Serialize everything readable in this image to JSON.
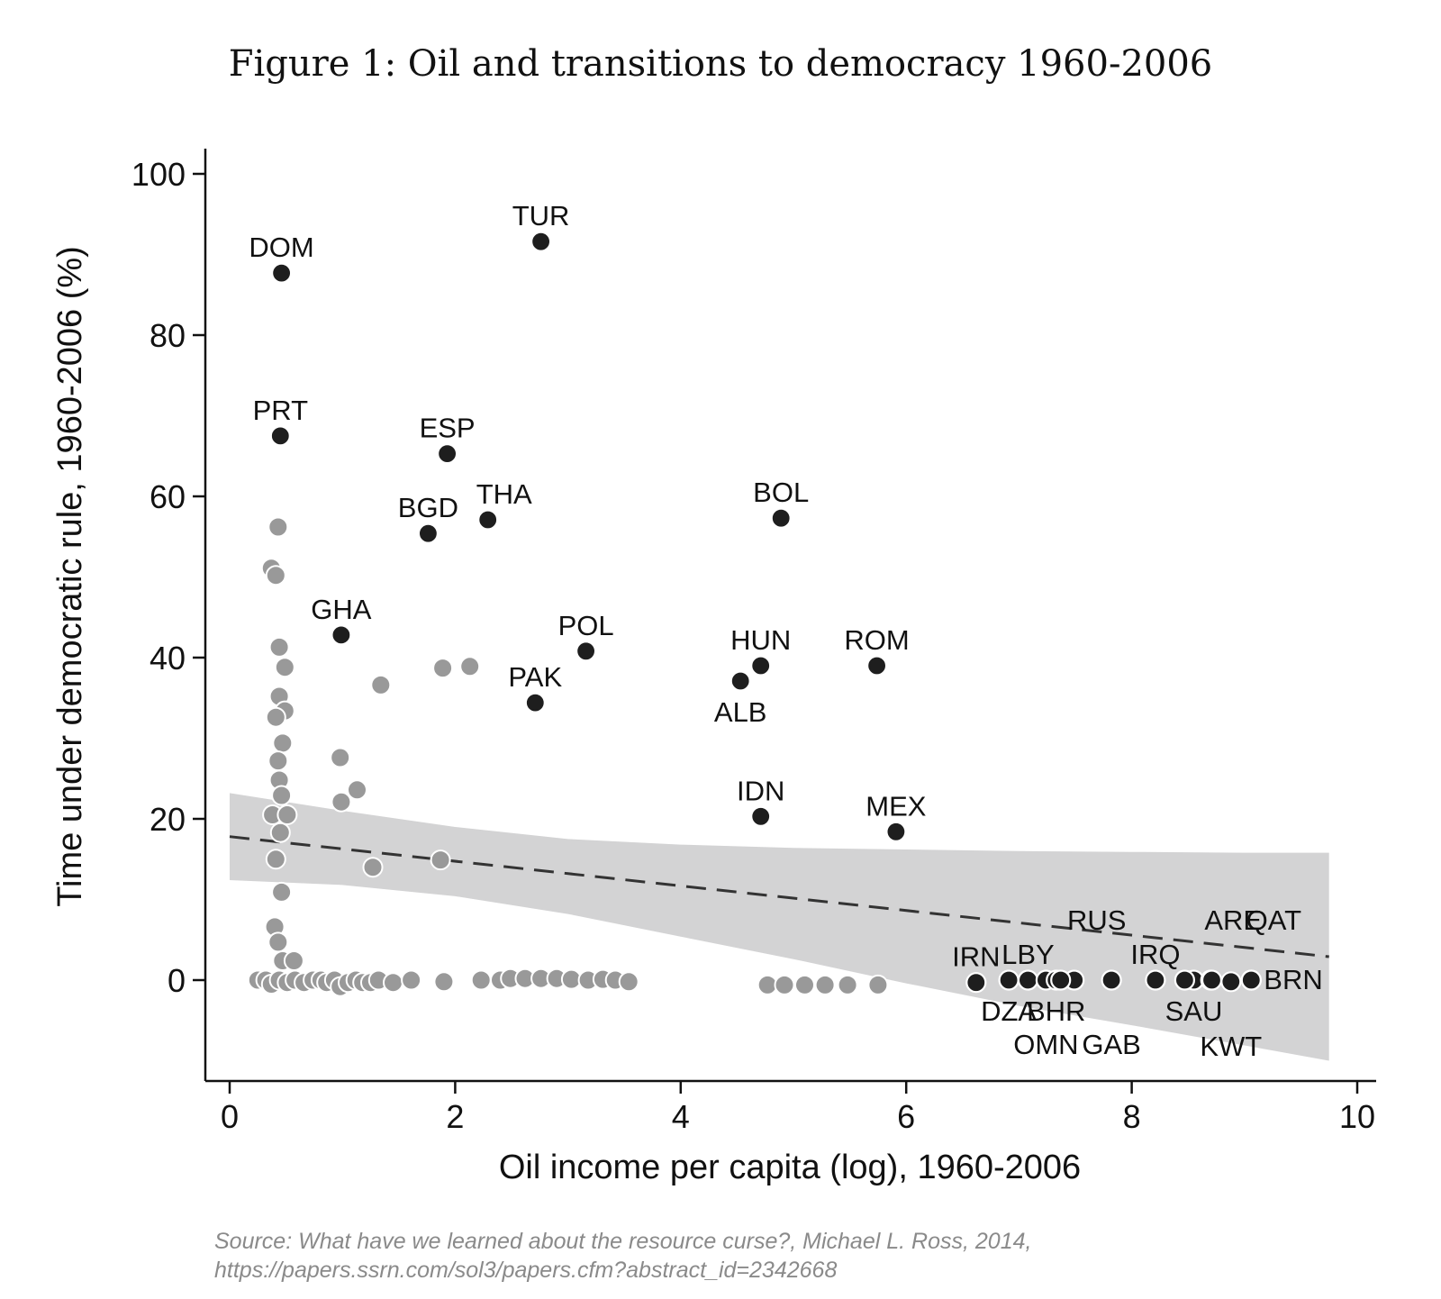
{
  "title": "Figure 1: Oil and transitions to democracy 1960-2006",
  "source_line1": "Source: What have we learned about the resource curse?, Michael L. Ross, 2014,",
  "source_line2": "https://papers.ssrn.com/sol3/papers.cfm?abstract_id=2342668",
  "colors": {
    "labeled_point": "#1e1e1e",
    "grey_point": "#999999",
    "band": "#d3d3d4",
    "fit_line": "#333333",
    "axis": "#111111"
  },
  "chart_data": {
    "type": "scatter",
    "xlabel": "Oil income per capita (log), 1960-2006",
    "ylabel": "Time under democratic rule, 1960-2006 (%)",
    "xlim": [
      0,
      10
    ],
    "ylim": [
      -12,
      102
    ],
    "xticks": [
      0,
      2,
      4,
      6,
      8,
      10
    ],
    "yticks": [
      0,
      20,
      40,
      60,
      80,
      100
    ],
    "fit_line": {
      "x": [
        0,
        9.75
      ],
      "y": [
        17.8,
        2.9
      ]
    },
    "confidence_band": {
      "x": [
        0,
        1,
        2,
        3,
        4,
        5,
        6,
        7,
        8,
        9,
        9.75
      ],
      "upper": [
        23.2,
        21.0,
        19.0,
        17.5,
        16.8,
        16.4,
        16.2,
        16.0,
        15.9,
        15.8,
        15.8
      ],
      "lower": [
        12.4,
        11.8,
        10.4,
        8.2,
        5.4,
        2.6,
        -0.4,
        -3.2,
        -5.6,
        -8.1,
        -10.0
      ]
    },
    "labeled_points": [
      {
        "label": "DOM",
        "x": 0.46,
        "y": 87.7,
        "pos": "above"
      },
      {
        "label": "TUR",
        "x": 2.76,
        "y": 91.6,
        "pos": "above"
      },
      {
        "label": "PRT",
        "x": 0.45,
        "y": 67.5,
        "pos": "above"
      },
      {
        "label": "ESP",
        "x": 1.93,
        "y": 65.3,
        "pos": "above"
      },
      {
        "label": "BGD",
        "x": 1.76,
        "y": 55.4,
        "pos": "above"
      },
      {
        "label": "THA",
        "x": 2.29,
        "y": 57.1,
        "pos": "above-right"
      },
      {
        "label": "BOL",
        "x": 4.89,
        "y": 57.3,
        "pos": "above"
      },
      {
        "label": "GHA",
        "x": 0.99,
        "y": 42.8,
        "pos": "above"
      },
      {
        "label": "POL",
        "x": 3.16,
        "y": 40.8,
        "pos": "above"
      },
      {
        "label": "HUN",
        "x": 4.71,
        "y": 39.0,
        "pos": "above"
      },
      {
        "label": "ROM",
        "x": 5.74,
        "y": 39.0,
        "pos": "above"
      },
      {
        "label": "PAK",
        "x": 2.71,
        "y": 34.4,
        "pos": "above"
      },
      {
        "label": "ALB",
        "x": 4.53,
        "y": 37.1,
        "pos": "below"
      },
      {
        "label": "IDN",
        "x": 4.71,
        "y": 20.3,
        "pos": "above"
      },
      {
        "label": "MEX",
        "x": 5.91,
        "y": 18.4,
        "pos": "above"
      },
      {
        "label": "IRN",
        "x": 6.62,
        "y": -0.3,
        "pos": "above"
      },
      {
        "label": "DZA",
        "x": 6.91,
        "y": 0.0,
        "pos": "below"
      },
      {
        "label": "LBY",
        "x": 7.08,
        "y": 0.0,
        "pos": "above"
      },
      {
        "label": "OMN",
        "x": 7.24,
        "y": 0.0,
        "pos": "below2"
      },
      {
        "label": "BHR",
        "x": 7.33,
        "y": 0.0,
        "pos": "below"
      },
      {
        "label": "RUS",
        "x": 7.49,
        "y": 0.0,
        "pos": "far-above"
      },
      {
        "label": "GAB",
        "x": 7.82,
        "y": 0.0,
        "pos": "below2"
      },
      {
        "label": "IRQ",
        "x": 8.21,
        "y": 0.0,
        "pos": "above"
      },
      {
        "label": "SAU",
        "x": 8.55,
        "y": 0.0,
        "pos": "below"
      },
      {
        "label": "ARE",
        "x": 8.7,
        "y": 0.0,
        "pos": "far-above"
      },
      {
        "label": "KWT",
        "x": 8.88,
        "y": -0.2,
        "pos": "below2"
      },
      {
        "label": "QAT",
        "x": 9.06,
        "y": 0.0,
        "pos": "far-above"
      },
      {
        "label": "BRN",
        "x": 9.06,
        "y": 0.0,
        "pos": "right"
      }
    ],
    "extra_black_points": [
      {
        "x": 7.37,
        "y": 0.0
      },
      {
        "x": 8.47,
        "y": 0.0
      },
      {
        "x": 8.71,
        "y": 0.0
      }
    ],
    "grey_points": [
      {
        "x": 0.43,
        "y": 56.2
      },
      {
        "x": 0.37,
        "y": 51.1
      },
      {
        "x": 0.41,
        "y": 50.2
      },
      {
        "x": 0.44,
        "y": 41.3
      },
      {
        "x": 0.49,
        "y": 38.8
      },
      {
        "x": 0.44,
        "y": 35.2
      },
      {
        "x": 0.49,
        "y": 33.4
      },
      {
        "x": 0.41,
        "y": 32.6
      },
      {
        "x": 0.47,
        "y": 29.4
      },
      {
        "x": 0.43,
        "y": 27.2
      },
      {
        "x": 0.44,
        "y": 24.8
      },
      {
        "x": 0.46,
        "y": 22.9
      },
      {
        "x": 0.38,
        "y": 20.5
      },
      {
        "x": 0.51,
        "y": 20.5
      },
      {
        "x": 0.45,
        "y": 18.3
      },
      {
        "x": 0.41,
        "y": 15.0
      },
      {
        "x": 0.46,
        "y": 10.9
      },
      {
        "x": 0.4,
        "y": 6.6
      },
      {
        "x": 0.43,
        "y": 4.7
      },
      {
        "x": 0.47,
        "y": 2.4
      },
      {
        "x": 0.57,
        "y": 2.4
      },
      {
        "x": 0.98,
        "y": 27.6
      },
      {
        "x": 0.99,
        "y": 22.1
      },
      {
        "x": 1.13,
        "y": 23.6
      },
      {
        "x": 1.34,
        "y": 36.6
      },
      {
        "x": 1.27,
        "y": 14.0
      },
      {
        "x": 1.89,
        "y": 38.7
      },
      {
        "x": 2.13,
        "y": 38.9
      },
      {
        "x": 1.87,
        "y": 14.9
      },
      {
        "x": 0.25,
        "y": 0.0
      },
      {
        "x": 0.32,
        "y": 0.0
      },
      {
        "x": 0.37,
        "y": -0.5
      },
      {
        "x": 0.44,
        "y": 0.0
      },
      {
        "x": 0.51,
        "y": -0.3
      },
      {
        "x": 0.58,
        "y": 0.0
      },
      {
        "x": 0.66,
        "y": -0.3
      },
      {
        "x": 0.74,
        "y": 0.0
      },
      {
        "x": 0.81,
        "y": 0.0
      },
      {
        "x": 0.86,
        "y": -0.3
      },
      {
        "x": 0.93,
        "y": 0.0
      },
      {
        "x": 0.98,
        "y": -0.8
      },
      {
        "x": 1.05,
        "y": -0.3
      },
      {
        "x": 1.12,
        "y": 0.0
      },
      {
        "x": 1.18,
        "y": -0.3
      },
      {
        "x": 1.25,
        "y": -0.3
      },
      {
        "x": 1.32,
        "y": 0.0
      },
      {
        "x": 1.45,
        "y": -0.3
      },
      {
        "x": 1.61,
        "y": 0.0
      },
      {
        "x": 1.9,
        "y": -0.2
      },
      {
        "x": 2.23,
        "y": 0.0
      },
      {
        "x": 2.4,
        "y": 0.0
      },
      {
        "x": 2.49,
        "y": 0.2
      },
      {
        "x": 2.62,
        "y": 0.2
      },
      {
        "x": 2.76,
        "y": 0.2
      },
      {
        "x": 2.9,
        "y": 0.2
      },
      {
        "x": 3.03,
        "y": 0.1
      },
      {
        "x": 3.18,
        "y": 0.0
      },
      {
        "x": 3.31,
        "y": 0.1
      },
      {
        "x": 3.42,
        "y": 0.0
      },
      {
        "x": 3.54,
        "y": -0.2
      },
      {
        "x": 4.77,
        "y": -0.6
      },
      {
        "x": 4.92,
        "y": -0.6
      },
      {
        "x": 5.1,
        "y": -0.6
      },
      {
        "x": 5.28,
        "y": -0.6
      },
      {
        "x": 5.48,
        "y": -0.6
      },
      {
        "x": 5.75,
        "y": -0.6
      }
    ]
  }
}
